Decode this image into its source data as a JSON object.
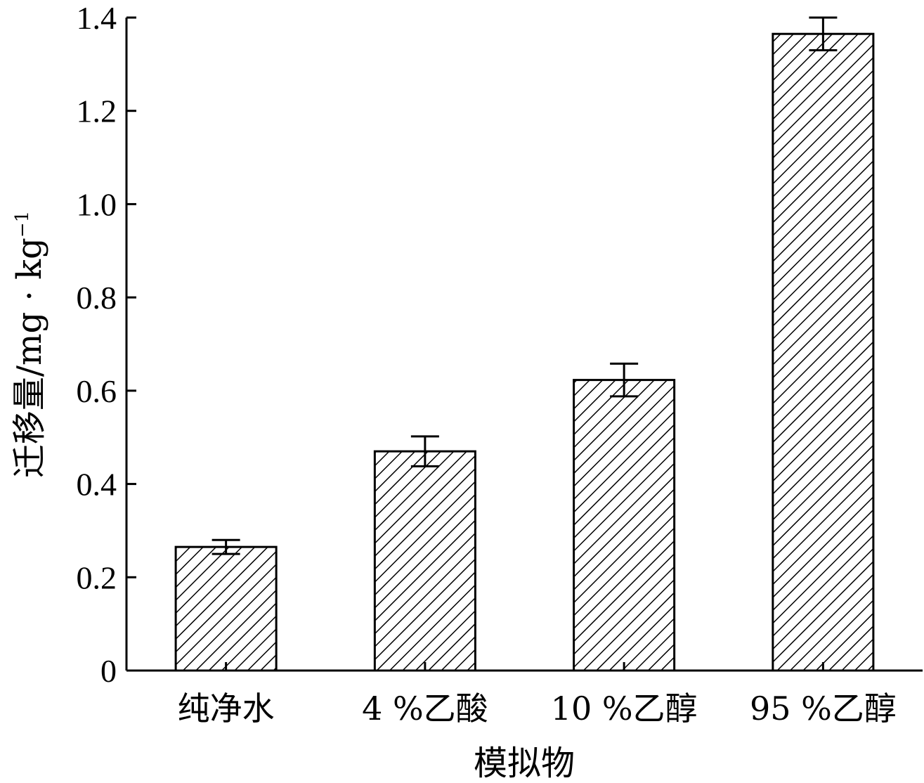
{
  "chart_data": {
    "type": "bar",
    "categories": [
      "纯净水",
      "4 %乙酸",
      "10 %乙醇",
      "95 %乙醇"
    ],
    "values": [
      0.265,
      0.47,
      0.623,
      1.365
    ],
    "errors": [
      0.015,
      0.032,
      0.035,
      0.035
    ],
    "xlabel": "模拟物",
    "ylabel": "迁移量/mg · kg",
    "ylabel_superscript": "−1",
    "ylim": [
      0,
      1.4
    ],
    "yticks": [
      0,
      0.2,
      0.4,
      0.6,
      0.8,
      1.0,
      1.2,
      1.4
    ],
    "ytick_labels": [
      "0",
      "0.2",
      "0.4",
      "0.6",
      "0.8",
      "1.0",
      "1.2",
      "1.4"
    ],
    "bar_fill": "hatched",
    "bar_color": "#000000",
    "grid": false,
    "legend": "none"
  }
}
